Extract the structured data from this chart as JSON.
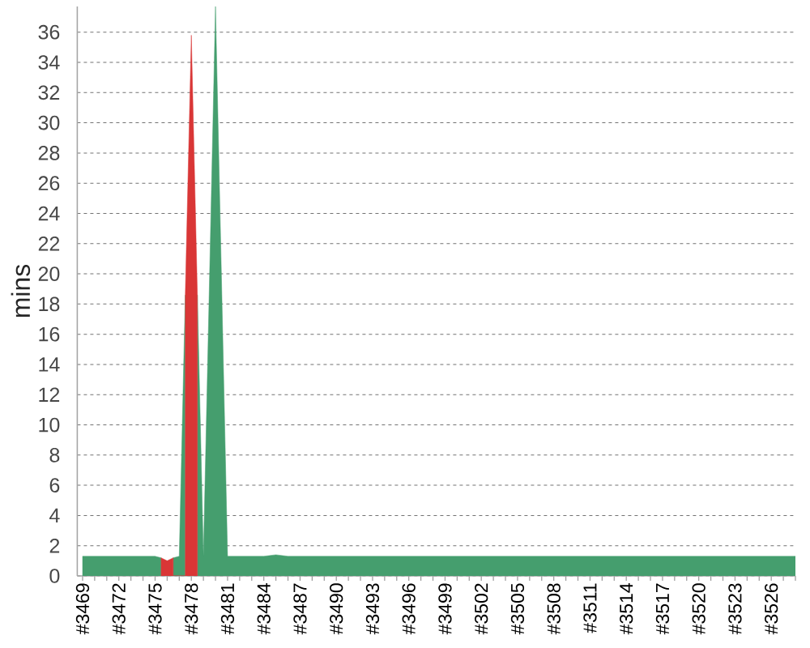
{
  "chart_data": {
    "type": "area",
    "ylabel": "mins",
    "series": [
      {
        "color": "#459e6e",
        "x": [
          3469,
          3470,
          3471,
          3472,
          3473,
          3474,
          3475,
          3475.5,
          3476,
          3476.5,
          3477,
          3477.5,
          3478,
          3478.5,
          3479,
          3480,
          3481,
          3482,
          3483,
          3484,
          3485,
          3486,
          3487,
          3488,
          3489,
          3490,
          3491,
          3492,
          3493,
          3494,
          3495,
          3496,
          3497,
          3498,
          3499,
          3500,
          3501,
          3502,
          3503,
          3504,
          3505,
          3506,
          3507,
          3508,
          3509,
          3510,
          3511,
          3512,
          3513,
          3514,
          3515,
          3516,
          3517,
          3518,
          3519,
          3520,
          3521,
          3522,
          3523,
          3524,
          3525,
          3526,
          3527,
          3528
        ],
        "values": [
          1.3,
          1.3,
          1.3,
          1.3,
          1.3,
          1.3,
          1.3,
          1.2,
          null,
          1.2,
          1.3,
          18.6,
          null,
          18.6,
          1.3,
          37.7,
          1.3,
          1.3,
          1.3,
          1.3,
          1.4,
          1.3,
          1.3,
          1.3,
          1.3,
          1.3,
          1.3,
          1.3,
          1.3,
          1.3,
          1.3,
          1.3,
          1.3,
          1.3,
          1.3,
          1.3,
          1.3,
          1.3,
          1.3,
          1.3,
          1.3,
          1.3,
          1.3,
          1.3,
          1.3,
          1.3,
          1.3,
          1.3,
          1.3,
          1.3,
          1.3,
          1.3,
          1.3,
          1.3,
          1.3,
          1.3,
          1.3,
          1.3,
          1.3,
          1.3,
          1.3,
          1.3,
          1.3,
          1.3
        ]
      },
      {
        "color": "#d93636",
        "x": [
          3475.5,
          3476,
          3476.5,
          3477,
          3477.5,
          3478,
          3478.5
        ],
        "values": [
          1.2,
          1.0,
          1.2,
          null,
          18.6,
          35.8,
          18.6
        ]
      }
    ],
    "xlim": [
      3468.56,
      3528
    ],
    "xticks": [
      {
        "value": 3469,
        "label": "#3469"
      },
      {
        "value": 3470,
        "label": null
      },
      {
        "value": 3471,
        "label": null
      },
      {
        "value": 3472,
        "label": "#3472"
      },
      {
        "value": 3473,
        "label": null
      },
      {
        "value": 3474,
        "label": null
      },
      {
        "value": 3475,
        "label": "#3475"
      },
      {
        "value": 3476,
        "label": null
      },
      {
        "value": 3477,
        "label": null
      },
      {
        "value": 3478,
        "label": "#3478"
      },
      {
        "value": 3479,
        "label": null
      },
      {
        "value": 3480,
        "label": null
      },
      {
        "value": 3481,
        "label": "#3481"
      },
      {
        "value": 3482,
        "label": null
      },
      {
        "value": 3483,
        "label": null
      },
      {
        "value": 3484,
        "label": "#3484"
      },
      {
        "value": 3485,
        "label": null
      },
      {
        "value": 3486,
        "label": null
      },
      {
        "value": 3487,
        "label": "#3487"
      },
      {
        "value": 3488,
        "label": null
      },
      {
        "value": 3489,
        "label": null
      },
      {
        "value": 3490,
        "label": "#3490"
      },
      {
        "value": 3491,
        "label": null
      },
      {
        "value": 3492,
        "label": null
      },
      {
        "value": 3493,
        "label": "#3493"
      },
      {
        "value": 3494,
        "label": null
      },
      {
        "value": 3495,
        "label": null
      },
      {
        "value": 3496,
        "label": "#3496"
      },
      {
        "value": 3497,
        "label": null
      },
      {
        "value": 3498,
        "label": null
      },
      {
        "value": 3499,
        "label": "#3499"
      },
      {
        "value": 3500,
        "label": null
      },
      {
        "value": 3501,
        "label": null
      },
      {
        "value": 3502,
        "label": "#3502"
      },
      {
        "value": 3503,
        "label": null
      },
      {
        "value": 3504,
        "label": null
      },
      {
        "value": 3505,
        "label": "#3505"
      },
      {
        "value": 3506,
        "label": null
      },
      {
        "value": 3507,
        "label": null
      },
      {
        "value": 3508,
        "label": "#3508"
      },
      {
        "value": 3509,
        "label": null
      },
      {
        "value": 3510,
        "label": null
      },
      {
        "value": 3511,
        "label": "#3511"
      },
      {
        "value": 3512,
        "label": null
      },
      {
        "value": 3513,
        "label": null
      },
      {
        "value": 3514,
        "label": "#3514"
      },
      {
        "value": 3515,
        "label": null
      },
      {
        "value": 3516,
        "label": null
      },
      {
        "value": 3517,
        "label": "#3517"
      },
      {
        "value": 3518,
        "label": null
      },
      {
        "value": 3519,
        "label": null
      },
      {
        "value": 3520,
        "label": "#3520"
      },
      {
        "value": 3521,
        "label": null
      },
      {
        "value": 3522,
        "label": null
      },
      {
        "value": 3523,
        "label": "#3523"
      },
      {
        "value": 3524,
        "label": null
      },
      {
        "value": 3525,
        "label": null
      },
      {
        "value": 3526,
        "label": "#3526"
      },
      {
        "value": 3527,
        "label": null
      },
      {
        "value": 3528,
        "label": null
      }
    ],
    "ylim": [
      0,
      37.7
    ],
    "yticks": [
      0,
      2,
      4,
      6,
      8,
      10,
      12,
      14,
      16,
      18,
      20,
      22,
      24,
      26,
      28,
      30,
      32,
      34,
      36
    ],
    "grid": "y"
  }
}
